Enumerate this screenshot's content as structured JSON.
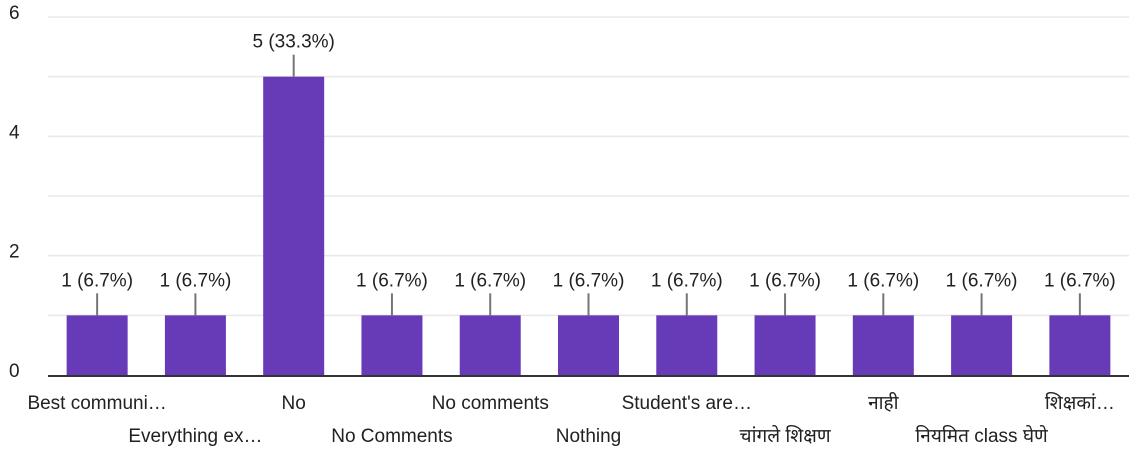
{
  "chart_data": {
    "type": "bar",
    "title": "",
    "xlabel": "",
    "ylabel": "",
    "ylim": [
      0,
      6
    ],
    "yticks": [
      0,
      2,
      4,
      6
    ],
    "grid": true,
    "categories": [
      "Best communi…",
      "Everything ex…",
      "No",
      "No Comments",
      "No comments",
      "Nothing",
      "Student's are…",
      "चांगले शिक्षण",
      "नाही",
      "नियमित class घेणे",
      "शिक्षकां…"
    ],
    "values": [
      1,
      1,
      5,
      1,
      1,
      1,
      1,
      1,
      1,
      1,
      1
    ],
    "data_labels": [
      "1 (6.7%)",
      "1 (6.7%)",
      "5 (33.3%)",
      "1 (6.7%)",
      "1 (6.7%)",
      "1 (6.7%)",
      "1 (6.7%)",
      "1 (6.7%)",
      "1 (6.7%)",
      "1 (6.7%)",
      "1 (6.7%)"
    ],
    "bar_color": "#673ab7",
    "grid_color": "#e8e8e8",
    "axis_color": "#333333",
    "text_color": "#212121"
  }
}
